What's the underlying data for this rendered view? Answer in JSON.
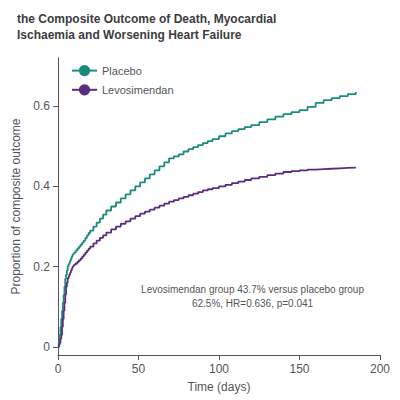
{
  "chart_data": {
    "type": "step",
    "title": "the Composite Outcome of Death, Myocardial\nIschaemia and Worsening Heart Failure",
    "xlabel": "Time (days)",
    "ylabel": "Proportion of composite outcome",
    "xlim": [
      0,
      200
    ],
    "ylim": [
      -0.02,
      0.72
    ],
    "xticks": [
      0,
      50,
      100,
      150,
      200
    ],
    "yticks": [
      0,
      0.2,
      0.4,
      0.6
    ],
    "grid": false,
    "legend": "upper left",
    "annotation": "Levosimendan group 43.7% versus placebo group\n62.5%, HR=0.636, p=0.041",
    "series": [
      {
        "name": "Placebo",
        "color": "#1a8c7e",
        "x": [
          0,
          0.5,
          1,
          1.5,
          2,
          2.5,
          3,
          3.5,
          4,
          4.5,
          5,
          5.5,
          6,
          6.5,
          7,
          7.5,
          8,
          8.5,
          9,
          9.5,
          10,
          11,
          12,
          13,
          14,
          15,
          16,
          17,
          18,
          19,
          20,
          22,
          24,
          26,
          28,
          30,
          33,
          36,
          39,
          42,
          45,
          48,
          51,
          54,
          57,
          60,
          63,
          66,
          69,
          72,
          75,
          78,
          81,
          84,
          87,
          90,
          93,
          96,
          100,
          104,
          108,
          112,
          116,
          120,
          125,
          130,
          135,
          140,
          145,
          150,
          155,
          160,
          165,
          170,
          175,
          180,
          185
        ],
        "values": [
          0,
          0.01,
          0.03,
          0.05,
          0.07,
          0.09,
          0.11,
          0.13,
          0.15,
          0.17,
          0.18,
          0.19,
          0.2,
          0.205,
          0.21,
          0.215,
          0.22,
          0.225,
          0.23,
          0.232,
          0.235,
          0.24,
          0.245,
          0.25,
          0.255,
          0.26,
          0.265,
          0.272,
          0.278,
          0.284,
          0.29,
          0.3,
          0.31,
          0.32,
          0.33,
          0.34,
          0.35,
          0.36,
          0.37,
          0.38,
          0.39,
          0.4,
          0.41,
          0.42,
          0.43,
          0.44,
          0.45,
          0.46,
          0.47,
          0.475,
          0.48,
          0.487,
          0.493,
          0.498,
          0.503,
          0.508,
          0.513,
          0.518,
          0.525,
          0.532,
          0.538,
          0.543,
          0.548,
          0.553,
          0.56,
          0.567,
          0.574,
          0.58,
          0.585,
          0.59,
          0.598,
          0.608,
          0.615,
          0.62,
          0.625,
          0.63,
          0.635
        ]
      },
      {
        "name": "Levosimendan",
        "color": "#5c2d7e",
        "x": [
          0,
          0.5,
          1,
          1.5,
          2,
          2.5,
          3,
          3.5,
          4,
          4.5,
          5,
          5.5,
          6,
          6.5,
          7,
          7.5,
          8,
          8.5,
          9,
          9.5,
          10,
          11,
          12,
          13,
          14,
          15,
          16,
          17,
          18,
          19,
          20,
          22,
          24,
          26,
          28,
          30,
          33,
          36,
          39,
          42,
          45,
          48,
          51,
          54,
          57,
          60,
          63,
          66,
          69,
          72,
          75,
          78,
          81,
          84,
          87,
          90,
          93,
          96,
          100,
          104,
          108,
          112,
          116,
          120,
          125,
          130,
          135,
          140,
          145,
          150,
          155,
          160,
          165,
          170,
          175,
          180,
          185
        ],
        "values": [
          0,
          0.005,
          0.01,
          0.02,
          0.03,
          0.05,
          0.07,
          0.09,
          0.11,
          0.13,
          0.15,
          0.16,
          0.17,
          0.175,
          0.18,
          0.185,
          0.19,
          0.195,
          0.2,
          0.202,
          0.205,
          0.208,
          0.212,
          0.216,
          0.22,
          0.225,
          0.23,
          0.235,
          0.24,
          0.245,
          0.25,
          0.258,
          0.265,
          0.272,
          0.278,
          0.285,
          0.293,
          0.3,
          0.307,
          0.313,
          0.32,
          0.326,
          0.332,
          0.337,
          0.342,
          0.347,
          0.352,
          0.357,
          0.362,
          0.366,
          0.37,
          0.374,
          0.378,
          0.382,
          0.386,
          0.39,
          0.393,
          0.396,
          0.4,
          0.404,
          0.408,
          0.412,
          0.416,
          0.42,
          0.424,
          0.428,
          0.432,
          0.436,
          0.438,
          0.44,
          0.442,
          0.443,
          0.444,
          0.445,
          0.446,
          0.447,
          0.448
        ]
      }
    ]
  }
}
